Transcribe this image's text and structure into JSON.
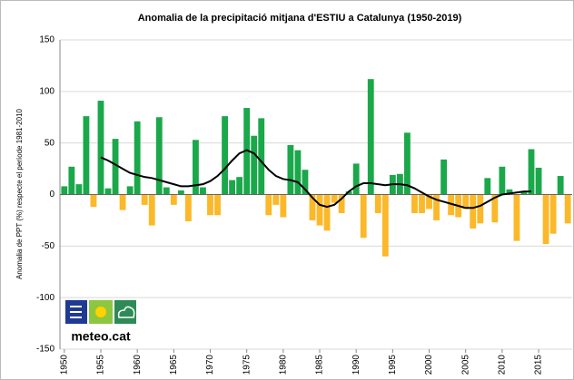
{
  "chart_data": {
    "type": "bar",
    "title": "Anomalia de la precipitació mitjana d'ESTIU a Catalunya (1950-2019)",
    "y_label": "Anomalia de PPT (%) respecte el període 1981-2010",
    "logo_text": "meteo.cat",
    "x": [
      1950,
      1951,
      1952,
      1953,
      1954,
      1955,
      1956,
      1957,
      1958,
      1959,
      1960,
      1961,
      1962,
      1963,
      1964,
      1965,
      1966,
      1967,
      1968,
      1969,
      1970,
      1971,
      1972,
      1973,
      1974,
      1975,
      1976,
      1977,
      1978,
      1979,
      1980,
      1981,
      1982,
      1983,
      1984,
      1985,
      1986,
      1987,
      1988,
      1989,
      1990,
      1991,
      1992,
      1993,
      1994,
      1995,
      1996,
      1997,
      1998,
      1999,
      2000,
      2001,
      2002,
      2003,
      2004,
      2005,
      2006,
      2007,
      2008,
      2009,
      2010,
      2011,
      2012,
      2013,
      2014,
      2015,
      2016,
      2017,
      2018,
      2019
    ],
    "values": [
      8,
      27,
      10,
      76,
      -12,
      91,
      6,
      54,
      -15,
      8,
      71,
      -10,
      -30,
      75,
      7,
      -10,
      4,
      -26,
      53,
      7,
      -20,
      -20,
      76,
      14,
      17,
      84,
      57,
      74,
      -20,
      -10,
      -22,
      48,
      43,
      24,
      -25,
      -30,
      -35,
      -8,
      -18,
      3,
      30,
      -42,
      112,
      -18,
      -60,
      19,
      20,
      60,
      -18,
      -18,
      -14,
      -25,
      34,
      -20,
      -22,
      -14,
      -33,
      -28,
      16,
      -27,
      27,
      5,
      -45,
      3,
      44,
      26,
      -48,
      -38,
      18,
      -28
    ],
    "colors": {
      "positive": "#1aa84a",
      "negative": "#fbb829"
    },
    "trend": {
      "color": "#000000",
      "x": [
        1955,
        1956,
        1957,
        1958,
        1959,
        1960,
        1961,
        1962,
        1963,
        1964,
        1965,
        1966,
        1967,
        1968,
        1969,
        1970,
        1971,
        1972,
        1973,
        1974,
        1975,
        1976,
        1977,
        1978,
        1979,
        1980,
        1981,
        1982,
        1983,
        1984,
        1985,
        1986,
        1987,
        1988,
        1989,
        1990,
        1991,
        1992,
        1993,
        1994,
        1995,
        1996,
        1997,
        1998,
        1999,
        2000,
        2001,
        2002,
        2003,
        2004,
        2005,
        2006,
        2007,
        2008,
        2009,
        2010,
        2011,
        2012,
        2013,
        2014
      ],
      "values": [
        36,
        33,
        29,
        25,
        21,
        19,
        17,
        16,
        14,
        12,
        10,
        8,
        8,
        9,
        10,
        13,
        18,
        25,
        33,
        40,
        43,
        40,
        32,
        24,
        18,
        15,
        14,
        12,
        5,
        -3,
        -10,
        -12,
        -10,
        -4,
        3,
        8,
        11,
        11,
        10,
        9,
        10,
        10,
        9,
        6,
        2,
        -2,
        -5,
        -7,
        -9,
        -11,
        -13,
        -13,
        -11,
        -7,
        -3,
        0,
        1,
        2,
        3,
        3
      ]
    },
    "xlim": [
      1949.4,
      2019.6
    ],
    "xticks": [
      1950,
      1955,
      1960,
      1965,
      1970,
      1975,
      1980,
      1985,
      1990,
      1995,
      2000,
      2005,
      2010,
      2015
    ],
    "ylim": [
      -150,
      150
    ],
    "yticks": [
      -150,
      -100,
      -50,
      0,
      50,
      100,
      150
    ],
    "grid": true
  }
}
